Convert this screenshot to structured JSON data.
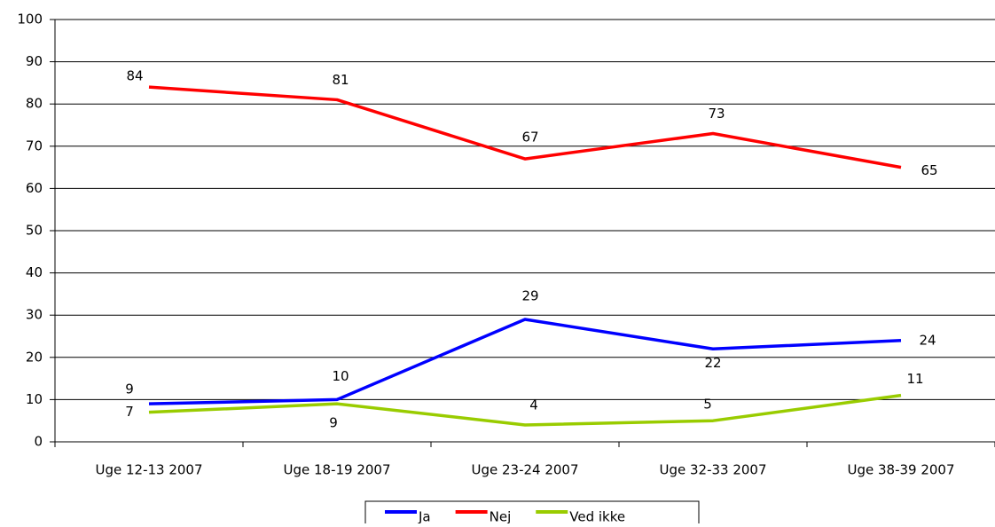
{
  "chart_data": {
    "type": "line",
    "categories": [
      "Uge 12-13 2007",
      "Uge 18-19 2007",
      "Uge 23-24 2007",
      "Uge 32-33 2007",
      "Uge 38-39 2007"
    ],
    "series": [
      {
        "name": "Ja",
        "color": "#0000ff",
        "values": [
          9,
          10,
          29,
          22,
          24
        ]
      },
      {
        "name": "Nej",
        "color": "#ff0000",
        "values": [
          84,
          81,
          67,
          73,
          65
        ]
      },
      {
        "name": "Ved ikke",
        "color": "#99cc00",
        "values": [
          7,
          9,
          4,
          5,
          11
        ]
      }
    ],
    "ylim": [
      0,
      100
    ],
    "yticks": [
      0,
      10,
      20,
      30,
      40,
      50,
      60,
      70,
      80,
      90,
      100
    ],
    "grid": true,
    "legend": "bottom"
  }
}
